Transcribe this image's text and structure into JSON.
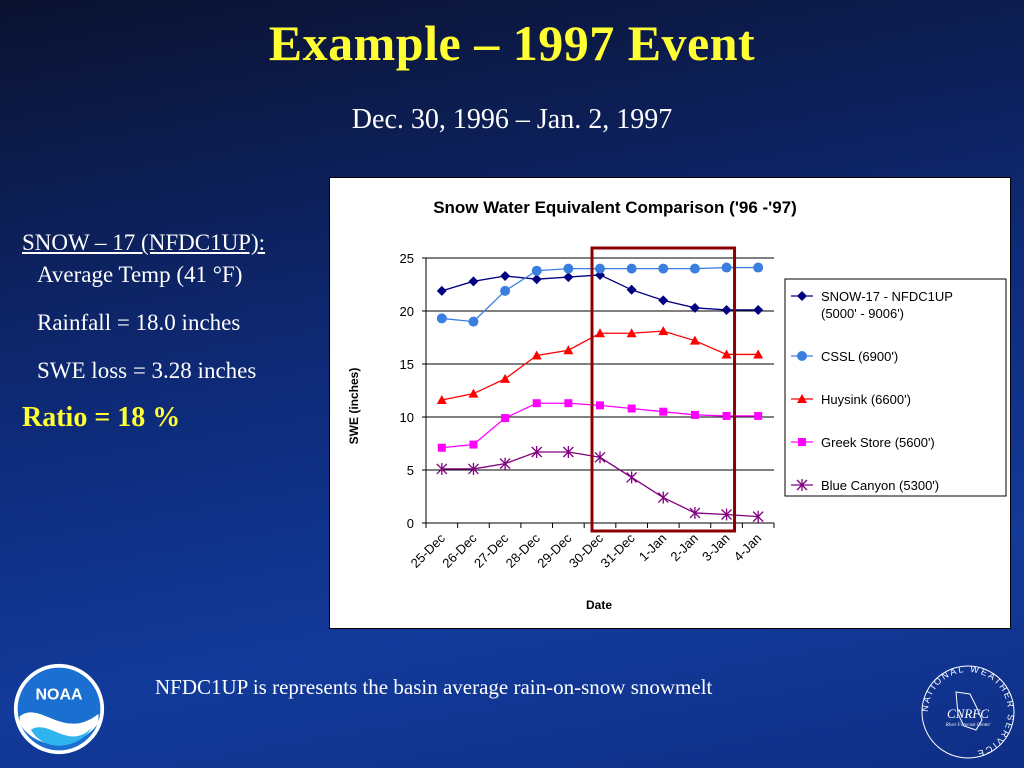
{
  "slide": {
    "title": "Example – 1997 Event",
    "subtitle": "Dec. 30, 1996 – Jan. 2, 1997",
    "caption": "NFDC1UP is represents the basin average rain-on-snow snowmelt"
  },
  "notes": {
    "heading": "SNOW – 17 (NFDC1UP):",
    "temp": "Average Temp (41 °F)",
    "rainfall": "Rainfall = 18.0 inches",
    "swe_loss": "SWE loss  = 3.28 inches",
    "ratio": "Ratio = 18 %"
  },
  "logos": {
    "noaa_text": "NOAA",
    "nws_ring": "NATIONAL WEATHER SERVICE",
    "cnrfc": "CNRFC",
    "cnrfc_sub": "River Forecast Center"
  },
  "colors": {
    "title": "#ffff33",
    "highlight_box": "#8b0000",
    "snow17": "#000080",
    "cssl": "#3a7fe0",
    "huysink": "#ff0000",
    "greek": "#ff00ff",
    "blue_canyon": "#800080"
  },
  "chart_data": {
    "type": "line",
    "title": "Snow Water Equivalent Comparison ('96 -'97)",
    "xlabel": "Date",
    "ylabel": "SWE (inches)",
    "ylim": [
      0,
      25
    ],
    "yticks": [
      0,
      5,
      10,
      15,
      20,
      25
    ],
    "grid": true,
    "legend": "right",
    "categories": [
      "25-Dec",
      "26-Dec",
      "27-Dec",
      "28-Dec",
      "29-Dec",
      "30-Dec",
      "31-Dec",
      "1-Jan",
      "2-Jan",
      "3-Jan",
      "4-Jan"
    ],
    "highlight_range": [
      "30-Dec",
      "3-Jan"
    ],
    "series": [
      {
        "name": "SNOW-17 - NFDC1UP (5000' - 9006')",
        "legend_lines": [
          "SNOW-17 - NFDC1UP",
          "(5000' - 9006')"
        ],
        "marker": "diamond",
        "color": "#000080",
        "values": [
          21.9,
          22.8,
          23.3,
          23.0,
          23.2,
          23.4,
          22.0,
          21.0,
          20.3,
          20.1,
          20.1
        ]
      },
      {
        "name": "CSSL (6900')",
        "legend_lines": [
          "CSSL (6900')"
        ],
        "marker": "circle",
        "color": "#3a7fe0",
        "values": [
          19.3,
          19.0,
          21.9,
          23.8,
          24.0,
          24.0,
          24.0,
          24.0,
          24.0,
          24.1,
          24.1
        ]
      },
      {
        "name": "Huysink (6600')",
        "legend_lines": [
          "Huysink (6600')"
        ],
        "marker": "triangle",
        "color": "#ff0000",
        "values": [
          11.6,
          12.2,
          13.6,
          15.8,
          16.3,
          17.9,
          17.9,
          18.1,
          17.2,
          15.9,
          15.9
        ]
      },
      {
        "name": "Greek Store (5600')",
        "legend_lines": [
          "Greek Store (5600')"
        ],
        "marker": "square",
        "color": "#ff00ff",
        "values": [
          7.1,
          7.4,
          9.9,
          11.3,
          11.3,
          11.1,
          10.8,
          10.5,
          10.2,
          10.1,
          10.1
        ]
      },
      {
        "name": "Blue Canyon (5300')",
        "legend_lines": [
          "Blue Canyon (5300')"
        ],
        "marker": "star",
        "color": "#800080",
        "values": [
          5.1,
          5.1,
          5.6,
          6.7,
          6.7,
          6.2,
          4.3,
          2.4,
          0.95,
          0.8,
          0.6
        ]
      }
    ]
  }
}
